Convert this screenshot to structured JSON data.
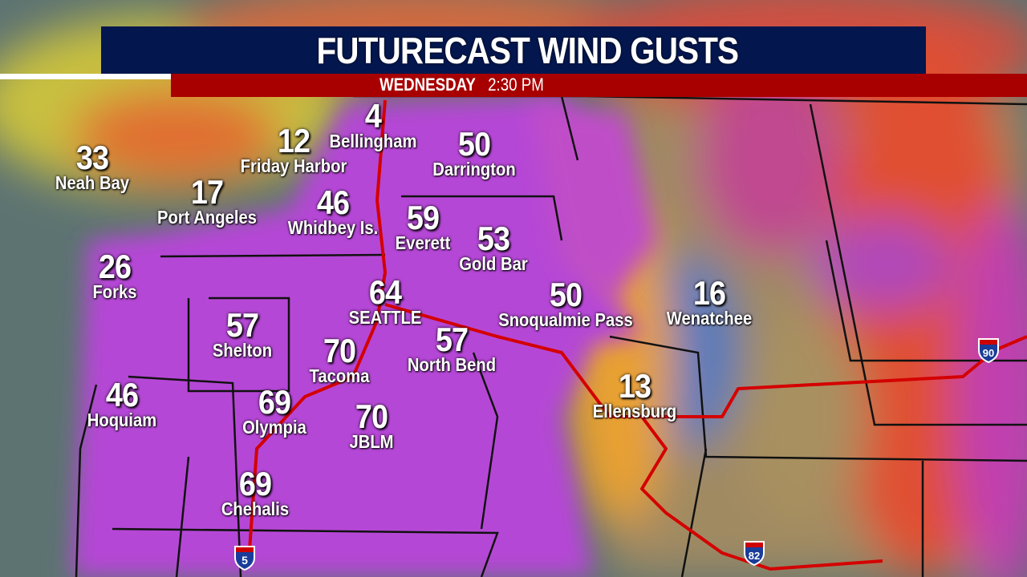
{
  "header": {
    "title": "FUTURECAST WIND GUSTS",
    "day": "WEDNESDAY",
    "time": "2:30 PM"
  },
  "colors": {
    "title_bar": "#03164e",
    "subtitle_bar": "#a80000",
    "gust_extreme": "#b040d8",
    "interstate_route": "#d40000"
  },
  "cities": [
    {
      "name": "Neah Bay",
      "gust": "33"
    },
    {
      "name": "Port Angeles",
      "gust": "17"
    },
    {
      "name": "Friday Harbor",
      "gust": "12"
    },
    {
      "name": "Bellingham",
      "gust": "4"
    },
    {
      "name": "Darrington",
      "gust": "50"
    },
    {
      "name": "Whidbey Is.",
      "gust": "46"
    },
    {
      "name": "Everett",
      "gust": "59"
    },
    {
      "name": "Gold Bar",
      "gust": "53"
    },
    {
      "name": "Forks",
      "gust": "26"
    },
    {
      "name": "SEATTLE",
      "gust": "64"
    },
    {
      "name": "Snoqualmie Pass",
      "gust": "50"
    },
    {
      "name": "Wenatchee",
      "gust": "16"
    },
    {
      "name": "Shelton",
      "gust": "57"
    },
    {
      "name": "Tacoma",
      "gust": "70"
    },
    {
      "name": "North Bend",
      "gust": "57"
    },
    {
      "name": "Ellensburg",
      "gust": "13"
    },
    {
      "name": "Hoquiam",
      "gust": "46"
    },
    {
      "name": "Olympia",
      "gust": "69"
    },
    {
      "name": "JBLM",
      "gust": "70"
    },
    {
      "name": "Chehalis",
      "gust": "69"
    }
  ],
  "interstates": [
    {
      "number": "90"
    },
    {
      "number": "82"
    },
    {
      "number": "5"
    }
  ]
}
